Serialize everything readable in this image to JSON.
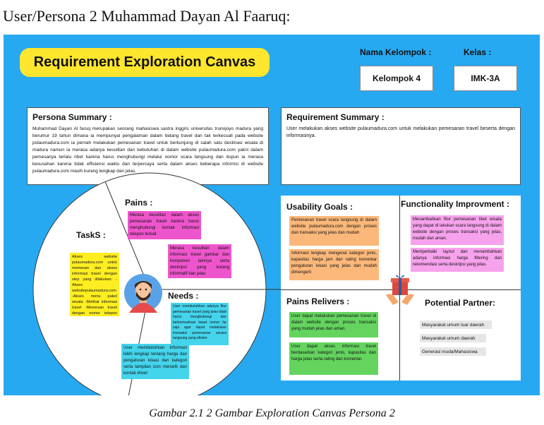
{
  "heading": "User/Persona 2 Muhammad Dayan Al Faaruq:",
  "canvas": {
    "title": "Requirement Exploration Canvas",
    "group_label": "Nama Kelompok :",
    "group_value": "Kelompok 4",
    "class_label": "Kelas :",
    "class_value": "IMK-3A"
  },
  "persona_summary": {
    "title": "Persona Summary :",
    "text": "Muhammad Dayan Al faruq merupakan seorang mahasiswa sastra inggris universitas trunojoyo madura yang berumur 19 tahun dimana ia mempunyai pengalaman dalam bidang travel dan tak terkecuali pada website pulaumadura.com ia pernah melakukan pemesanan travel untuk berkunjung di salah satu destinasi wisata di madura namun ia merasa adanya kesulitan dan kebutuhan di dalam website pulaumadura.com yakni dalam pemesanya terlalu ribet karena harus menghubungi melalui nomor scara langsung dan itupun ia merasa kesusahan karena tidak effisiensi waktu dan terpercaya serta dalam akses beberapa informsi di website pulaumadura.com masih kurang lengkap dan jelas."
  },
  "requirement_summary": {
    "title": "Requirement Summary :",
    "text": "User melakukan akses website pulaumadura.com untuk melakukan pemesanan travel beserta dengan informasinya."
  },
  "circle": {
    "pains_title": "Pains :",
    "tasks_title": "TaskS :",
    "needs_title": "Needs :",
    "pains_notes": [
      "Merasa kesulitan dalam akses pemesanan travel karena harus menghubungi kontak informasi telepon terkait",
      "Merasa kesulitan dalam informasi travel gambar dan komponen lainnya serta deskripsi yang kurang informatif dan jelas"
    ],
    "tasks_note": "Akses website pulaumadura.com untuk memesan dan akses informasi travel dengan step yang dilakukan: -Akses websitepulaumadura.com -Akses menu paket wisata -Melihat informasi travel -Memesan travel dengan nomor telepon yang tersedia",
    "needs_notes": [
      "User membutuhkan adanya fitur pemesanan travel yang jelas tidak harus menghubungi dan berkomunikasi lewat nomor hp saja agar dapat melakukan transaksi pemesanan secara langsung yang efisien",
      "User membutuhkan informasi lebih lengkap tentang harga dan pengaturan lokasi dan kategori serta tampilan icon menarik dan kontak driver"
    ]
  },
  "usability_goals": {
    "title": "Usability Goals :",
    "notes": [
      "Pemesanan travel scara langsung di dalam website pulaumadura.com dengan proses dan transaksi yang jelas dan mudah",
      "Informasi lengkap mengenai kategori jenis, kapasitas harga jam dan rating komentar pengaturan lokasi yang jelas dan mudah dimengerti"
    ]
  },
  "functionality": {
    "title": "Functionality Improvment :",
    "notes": [
      "Menambahkan fitur pemesanan tiket wisata yang dapat di lakukan scara langsung di dalam website dengan proses transaksi yang jelas, mudah dan aman.",
      "Memperbaiki layout dan menambahkan adanya informasi harga filtering dan rekomendasi serta deskripsi yang jelas."
    ]
  },
  "pains_relievers": {
    "title": "Pains Relivers :",
    "notes": [
      "User dapat melakukan pemesanan travel di dalam website dengan proses transaksi yang mudah jelas dan aman.",
      "User dapat akses informasi travel berdasarkan kategori jenis, kapasitas dan harga jelas serta rating dan komentar."
    ]
  },
  "potential_partner": {
    "title": "Potential Partner:",
    "notes": [
      "Masyarakat umum luar daerah",
      "Masyarakat umum daerah",
      "Generasi muda/Mahasiswa"
    ]
  },
  "caption": "Gambar 2.1  2 Gambar Exploration Canvas Persona 2"
}
